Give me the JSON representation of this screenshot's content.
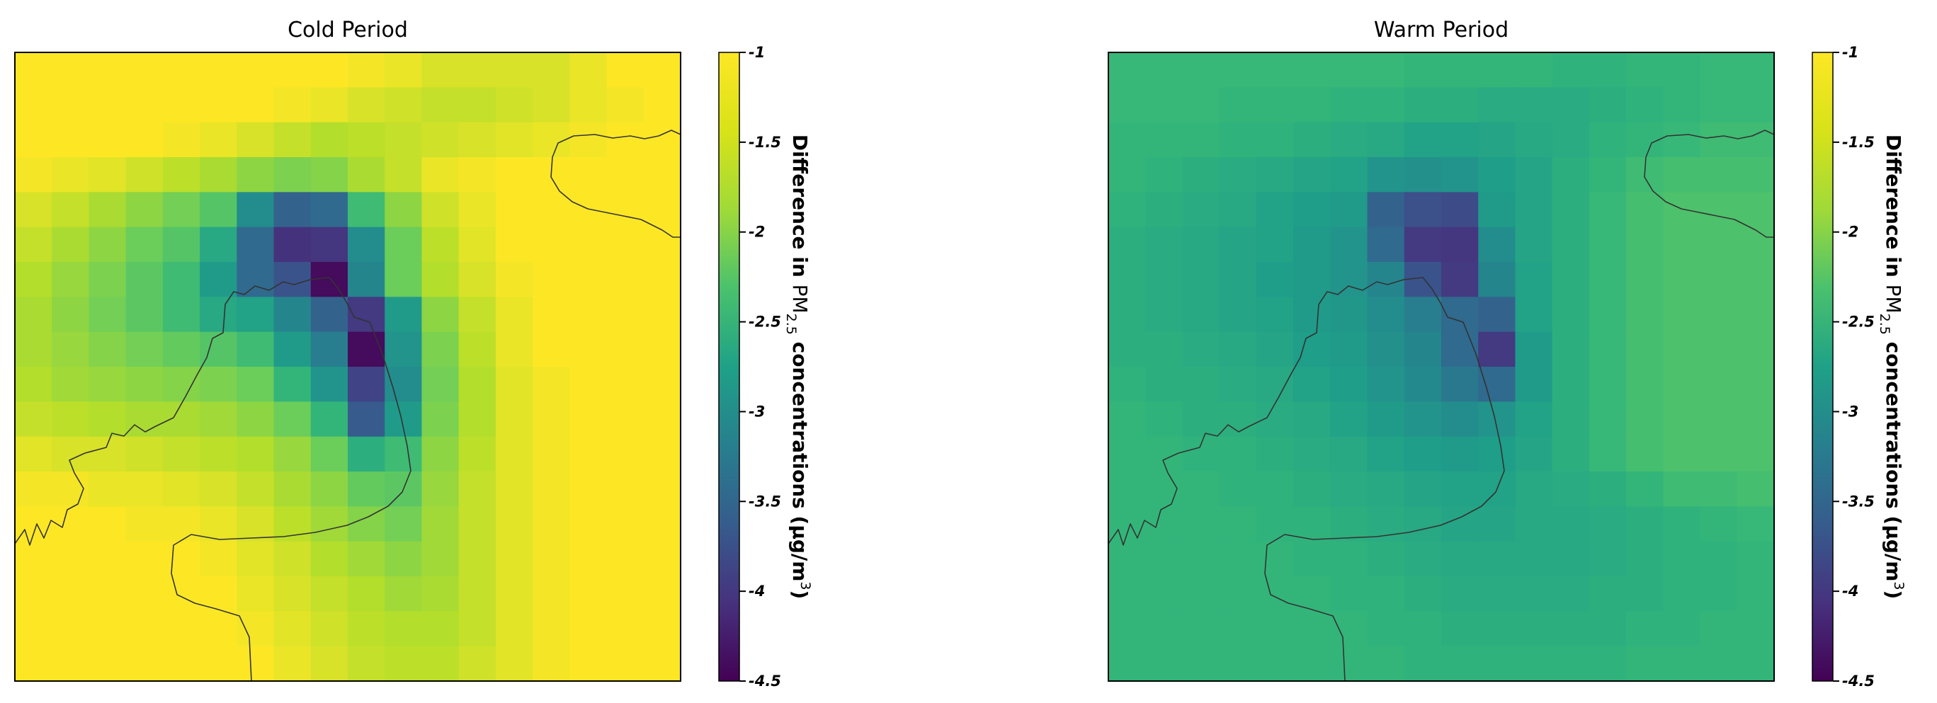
{
  "chart_data": [
    {
      "type": "heatmap",
      "title": "Cold Period",
      "colorbar": {
        "label_parts": [
          "Difference in ",
          "PM",
          "2.5",
          " concentrations (µg/m",
          "3",
          ")"
        ],
        "ticks": [
          "-1",
          "-1.5",
          "-2",
          "-2.5",
          "-3",
          "-3.5",
          "-4",
          "-4.5"
        ],
        "range": [
          -4.5,
          -1
        ],
        "colormap": "viridis"
      },
      "grid": {
        "rows": 18,
        "cols": 18,
        "cell_values": [
          [
            -1.0,
            -1.0,
            -1.0,
            -1.0,
            -1.0,
            -1.0,
            -1.0,
            -1.0,
            -1.0,
            -1.05,
            -1.1,
            -1.2,
            -1.2,
            -1.2,
            -1.2,
            -1.1,
            -1.0,
            -1.0
          ],
          [
            -1.0,
            -1.0,
            -1.0,
            -1.0,
            -1.0,
            -1.0,
            -1.0,
            -1.05,
            -1.1,
            -1.2,
            -1.25,
            -1.3,
            -1.3,
            -1.25,
            -1.2,
            -1.1,
            -1.05,
            -1.0
          ],
          [
            -1.0,
            -1.0,
            -1.0,
            -1.0,
            -1.05,
            -1.1,
            -1.2,
            -1.3,
            -1.4,
            -1.35,
            -1.3,
            -1.25,
            -1.2,
            -1.15,
            -1.1,
            -1.05,
            -1.0,
            -1.0
          ],
          [
            -1.05,
            -1.1,
            -1.15,
            -1.25,
            -1.35,
            -1.45,
            -1.6,
            -1.7,
            -1.65,
            -1.45,
            -1.3,
            -1.1,
            -1.05,
            -1.0,
            -1.0,
            -1.0,
            -1.0,
            -1.0
          ],
          [
            -1.2,
            -1.3,
            -1.45,
            -1.6,
            -1.75,
            -1.95,
            -2.8,
            -3.4,
            -3.3,
            -2.1,
            -1.6,
            -1.25,
            -1.1,
            -1.0,
            -1.0,
            -1.0,
            -1.0,
            -1.0
          ],
          [
            -1.3,
            -1.45,
            -1.6,
            -1.8,
            -1.95,
            -2.4,
            -3.3,
            -4.0,
            -3.95,
            -2.8,
            -1.8,
            -1.35,
            -1.15,
            -1.0,
            -1.0,
            -1.0,
            -1.0,
            -1.0
          ],
          [
            -1.4,
            -1.55,
            -1.7,
            -1.9,
            -2.1,
            -2.6,
            -3.3,
            -3.6,
            -4.4,
            -2.9,
            -1.8,
            -1.4,
            -1.2,
            -1.05,
            -1.0,
            -1.0,
            -1.0,
            -1.0
          ],
          [
            -1.45,
            -1.6,
            -1.75,
            -1.9,
            -2.1,
            -2.4,
            -2.5,
            -2.9,
            -3.4,
            -3.9,
            -2.6,
            -1.6,
            -1.3,
            -1.1,
            -1.0,
            -1.0,
            -1.0,
            -1.0
          ],
          [
            -1.45,
            -1.55,
            -1.65,
            -1.75,
            -1.85,
            -1.95,
            -2.1,
            -2.6,
            -3.0,
            -4.4,
            -2.7,
            -1.7,
            -1.35,
            -1.1,
            -1.0,
            -1.0,
            -1.0,
            -1.0
          ],
          [
            -1.4,
            -1.5,
            -1.55,
            -1.6,
            -1.65,
            -1.7,
            -1.8,
            -2.2,
            -2.7,
            -3.8,
            -2.8,
            -1.75,
            -1.4,
            -1.15,
            -1.05,
            -1.0,
            -1.0,
            -1.0
          ],
          [
            -1.3,
            -1.35,
            -1.4,
            -1.45,
            -1.45,
            -1.5,
            -1.6,
            -1.8,
            -2.2,
            -3.5,
            -2.6,
            -1.7,
            -1.4,
            -1.15,
            -1.05,
            -1.0,
            -1.0,
            -1.0
          ],
          [
            -1.15,
            -1.2,
            -1.2,
            -1.25,
            -1.3,
            -1.35,
            -1.4,
            -1.55,
            -1.8,
            -2.3,
            -2.1,
            -1.6,
            -1.35,
            -1.15,
            -1.05,
            -1.0,
            -1.0,
            -1.0
          ],
          [
            -1.05,
            -1.05,
            -1.1,
            -1.1,
            -1.15,
            -1.2,
            -1.3,
            -1.45,
            -1.6,
            -1.85,
            -1.9,
            -1.55,
            -1.3,
            -1.15,
            -1.05,
            -1.0,
            -1.0,
            -1.0
          ],
          [
            -1.0,
            -1.0,
            -1.0,
            -1.05,
            -1.05,
            -1.1,
            -1.2,
            -1.35,
            -1.5,
            -1.65,
            -1.75,
            -1.5,
            -1.3,
            -1.15,
            -1.05,
            -1.0,
            -1.0,
            -1.0
          ],
          [
            -1.0,
            -1.0,
            -1.0,
            -1.0,
            -1.0,
            -1.05,
            -1.15,
            -1.25,
            -1.4,
            -1.5,
            -1.6,
            -1.5,
            -1.3,
            -1.15,
            -1.05,
            -1.0,
            -1.0,
            -1.0
          ],
          [
            -1.0,
            -1.0,
            -1.0,
            -1.0,
            -1.0,
            -1.0,
            -1.1,
            -1.2,
            -1.3,
            -1.4,
            -1.5,
            -1.45,
            -1.3,
            -1.15,
            -1.05,
            -1.0,
            -1.0,
            -1.0
          ],
          [
            -1.0,
            -1.0,
            -1.0,
            -1.0,
            -1.0,
            -1.0,
            -1.05,
            -1.15,
            -1.25,
            -1.35,
            -1.4,
            -1.4,
            -1.3,
            -1.15,
            -1.05,
            -1.0,
            -1.0,
            -1.0
          ],
          [
            -1.0,
            -1.0,
            -1.0,
            -1.0,
            -1.0,
            -1.0,
            -1.0,
            -1.1,
            -1.2,
            -1.3,
            -1.35,
            -1.35,
            -1.25,
            -1.15,
            -1.05,
            -1.0,
            -1.0,
            -1.0
          ]
        ]
      }
    },
    {
      "type": "heatmap",
      "title": "Warm Period",
      "colorbar": {
        "label_parts": [
          "Difference in ",
          "PM",
          "2.5",
          " concentrations (µg/m",
          "3",
          ")"
        ],
        "ticks": [
          "-1",
          "-1.5",
          "-2",
          "-2.5",
          "-3",
          "-3.5",
          "-4",
          "-4.5"
        ],
        "range": [
          -4.5,
          -1
        ],
        "colormap": "viridis"
      },
      "grid": {
        "rows": 18,
        "cols": 18,
        "cell_values": [
          [
            -2.15,
            -2.15,
            -2.15,
            -2.15,
            -2.15,
            -2.15,
            -2.15,
            -2.15,
            -2.2,
            -2.2,
            -2.2,
            -2.2,
            -2.25,
            -2.25,
            -2.2,
            -2.2,
            -2.15,
            -2.15
          ],
          [
            -2.15,
            -2.15,
            -2.15,
            -2.2,
            -2.2,
            -2.2,
            -2.25,
            -2.25,
            -2.3,
            -2.3,
            -2.35,
            -2.35,
            -2.35,
            -2.3,
            -2.25,
            -2.2,
            -2.15,
            -2.15
          ],
          [
            -2.2,
            -2.2,
            -2.2,
            -2.25,
            -2.25,
            -2.3,
            -2.35,
            -2.4,
            -2.5,
            -2.5,
            -2.45,
            -2.4,
            -2.35,
            -2.25,
            -2.2,
            -2.15,
            -2.1,
            -2.1
          ],
          [
            -2.2,
            -2.25,
            -2.3,
            -2.35,
            -2.4,
            -2.45,
            -2.5,
            -2.7,
            -2.75,
            -2.7,
            -2.55,
            -2.45,
            -2.3,
            -2.2,
            -2.1,
            -2.05,
            -2.05,
            -2.05
          ],
          [
            -2.25,
            -2.3,
            -2.35,
            -2.4,
            -2.5,
            -2.55,
            -2.6,
            -3.4,
            -3.65,
            -3.7,
            -2.6,
            -2.45,
            -2.3,
            -2.15,
            -2.05,
            -2.0,
            -2.0,
            -2.0
          ],
          [
            -2.3,
            -2.35,
            -2.4,
            -2.45,
            -2.5,
            -2.6,
            -2.7,
            -3.3,
            -3.9,
            -3.95,
            -2.8,
            -2.45,
            -2.3,
            -2.15,
            -2.05,
            -2.0,
            -2.0,
            -2.0
          ],
          [
            -2.3,
            -2.35,
            -2.4,
            -2.45,
            -2.55,
            -2.6,
            -2.7,
            -2.9,
            -3.6,
            -3.9,
            -2.9,
            -2.5,
            -2.3,
            -2.15,
            -2.05,
            -2.0,
            -2.0,
            -2.0
          ],
          [
            -2.3,
            -2.35,
            -2.4,
            -2.45,
            -2.5,
            -2.6,
            -2.65,
            -2.8,
            -3.0,
            -3.3,
            -3.4,
            -2.5,
            -2.3,
            -2.15,
            -2.05,
            -2.0,
            -2.0,
            -2.0
          ],
          [
            -2.3,
            -2.3,
            -2.35,
            -2.4,
            -2.45,
            -2.55,
            -2.6,
            -2.75,
            -2.9,
            -3.3,
            -3.9,
            -2.6,
            -2.3,
            -2.15,
            -2.05,
            -2.0,
            -2.0,
            -2.0
          ],
          [
            -2.25,
            -2.3,
            -2.3,
            -2.35,
            -2.4,
            -2.5,
            -2.55,
            -2.7,
            -2.85,
            -3.1,
            -3.3,
            -2.6,
            -2.3,
            -2.15,
            -2.05,
            -2.0,
            -2.0,
            -2.0
          ],
          [
            -2.2,
            -2.25,
            -2.3,
            -2.3,
            -2.35,
            -2.4,
            -2.5,
            -2.6,
            -2.7,
            -2.8,
            -2.7,
            -2.5,
            -2.3,
            -2.15,
            -2.05,
            -2.0,
            -2.0,
            -2.0
          ],
          [
            -2.2,
            -2.2,
            -2.25,
            -2.25,
            -2.3,
            -2.35,
            -2.4,
            -2.5,
            -2.55,
            -2.6,
            -2.55,
            -2.45,
            -2.3,
            -2.15,
            -2.05,
            -2.0,
            -2.0,
            -2.0
          ],
          [
            -2.2,
            -2.2,
            -2.2,
            -2.25,
            -2.25,
            -2.3,
            -2.35,
            -2.4,
            -2.45,
            -2.5,
            -2.5,
            -2.4,
            -2.35,
            -2.3,
            -2.2,
            -2.1,
            -2.1,
            -2.05
          ],
          [
            -2.2,
            -2.2,
            -2.2,
            -2.2,
            -2.25,
            -2.25,
            -2.3,
            -2.35,
            -2.4,
            -2.45,
            -2.45,
            -2.4,
            -2.4,
            -2.35,
            -2.3,
            -2.25,
            -2.2,
            -2.15
          ],
          [
            -2.2,
            -2.2,
            -2.2,
            -2.2,
            -2.2,
            -2.25,
            -2.25,
            -2.3,
            -2.35,
            -2.4,
            -2.4,
            -2.4,
            -2.4,
            -2.35,
            -2.3,
            -2.25,
            -2.25,
            -2.2
          ],
          [
            -2.2,
            -2.2,
            -2.2,
            -2.2,
            -2.2,
            -2.2,
            -2.25,
            -2.25,
            -2.3,
            -2.35,
            -2.35,
            -2.35,
            -2.35,
            -2.3,
            -2.3,
            -2.25,
            -2.25,
            -2.2
          ],
          [
            -2.2,
            -2.2,
            -2.2,
            -2.2,
            -2.2,
            -2.2,
            -2.2,
            -2.25,
            -2.25,
            -2.3,
            -2.3,
            -2.3,
            -2.3,
            -2.3,
            -2.25,
            -2.25,
            -2.2,
            -2.2
          ],
          [
            -2.2,
            -2.2,
            -2.2,
            -2.2,
            -2.2,
            -2.2,
            -2.2,
            -2.2,
            -2.25,
            -2.25,
            -2.25,
            -2.25,
            -2.25,
            -2.25,
            -2.2,
            -2.2,
            -2.2,
            -2.2
          ]
        ]
      }
    }
  ]
}
